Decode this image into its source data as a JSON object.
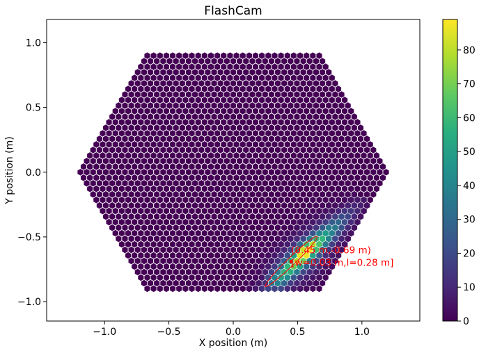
{
  "chart_data": {
    "type": "heatmap",
    "title": "FlashCam",
    "xlabel": "X position (m)",
    "ylabel": "Y position (m)",
    "xlim": [
      -1.45,
      1.45
    ],
    "ylim": [
      -1.15,
      1.18
    ],
    "x_ticks": [
      -1.0,
      -0.5,
      0.0,
      0.5,
      1.0
    ],
    "x_tick_labels": [
      "−1.0",
      "−0.5",
      "0.0",
      "0.5",
      "1.0"
    ],
    "y_ticks": [
      -1.0,
      -0.5,
      0.0,
      0.5,
      1.0
    ],
    "y_tick_labels": [
      "−1.0",
      "−0.5",
      "0.0",
      "0.5",
      "1.0"
    ],
    "colorbar": {
      "colormap": "viridis",
      "range": [
        0,
        89
      ],
      "ticks": [
        0,
        10,
        20,
        30,
        40,
        50,
        60,
        70,
        80
      ],
      "tick_labels": [
        "0",
        "10",
        "20",
        "30",
        "40",
        "50",
        "60",
        "70",
        "80"
      ]
    },
    "camera": {
      "pixel_shape": "hexagon",
      "pixel_pitch_m": 0.0495,
      "outline": "hexagon",
      "outline_radius_m": 1.22,
      "background_value": 0
    },
    "hillas": {
      "x": 0.45,
      "y": -0.69,
      "width": 0.03,
      "length": 0.28,
      "psi_deg": 44,
      "color": "#ff0000",
      "label_line1": "(0.45 m,-0.69 m)",
      "label_line2": "[w=0.03 m,l=0.28 m]"
    },
    "shower": {
      "peak_value": 89,
      "start": [
        0.27,
        -0.9
      ],
      "end": [
        0.92,
        -0.3
      ]
    },
    "colors": {
      "frame": "#000000",
      "pixel_separator": "#ffffff",
      "hillas_ellipse": "#ff0000"
    }
  }
}
